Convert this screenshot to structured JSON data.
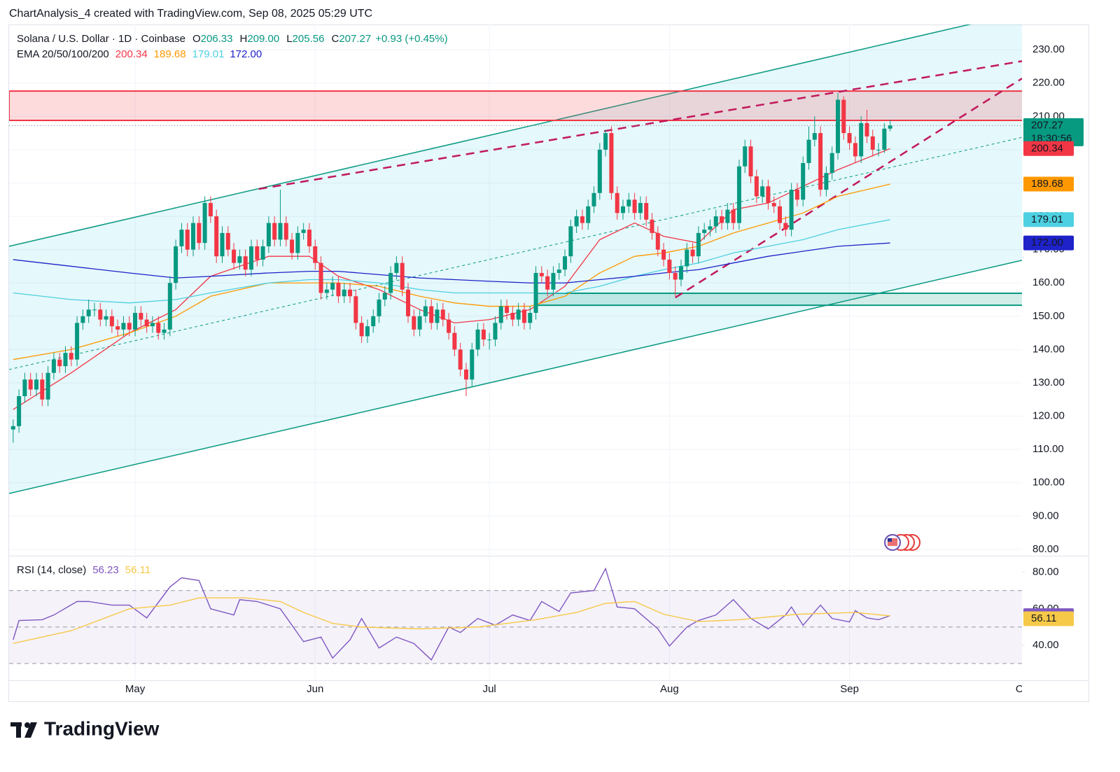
{
  "attribution": "ChartAnalysis_4 created with TradingView.com, Sep 08, 2025 05:29 UTC",
  "footer": {
    "brand": "TradingView"
  },
  "chart_data": [
    {
      "type": "candlestick",
      "title": "Solana / U.S. Dollar · 1D · Coinbase",
      "ohlc_legend": [
        {
          "label": "O",
          "value": "206.33"
        },
        {
          "label": "H",
          "value": "209.00"
        },
        {
          "label": "L",
          "value": "205.56"
        },
        {
          "label": "C",
          "value": "207.27"
        }
      ],
      "change": "+0.93 (+0.45%)",
      "countdown": "18:30:56",
      "up_color": "#089981",
      "down_color": "#f23645",
      "xlim": [
        -0.7,
        173.7
      ],
      "xticks": [
        {
          "value": 21,
          "label": "May"
        },
        {
          "value": 52,
          "label": "Jun"
        },
        {
          "value": 82,
          "label": "Jul"
        },
        {
          "value": 113,
          "label": "Aug"
        },
        {
          "value": 144,
          "label": "Sep"
        },
        {
          "value": 174,
          "label": "Oct"
        }
      ],
      "ylim": [
        78.3,
        237.6
      ],
      "yticks": [
        {
          "value": 80,
          "label": "80.00"
        },
        {
          "value": 90,
          "label": "90.00"
        },
        {
          "value": 100,
          "label": "100.00"
        },
        {
          "value": 110,
          "label": "110.00"
        },
        {
          "value": 120,
          "label": "120.00"
        },
        {
          "value": 130,
          "label": "130.00"
        },
        {
          "value": 140,
          "label": "140.00"
        },
        {
          "value": 150,
          "label": "150.00"
        },
        {
          "value": 160,
          "label": "160.00"
        },
        {
          "value": 170,
          "label": "170.00"
        },
        {
          "value": 180,
          "label": "180.00"
        },
        {
          "value": 190,
          "label": "190.00"
        },
        {
          "value": 200,
          "label": "200.00"
        },
        {
          "value": 210,
          "label": "210.00"
        },
        {
          "value": 220,
          "label": "220.00"
        },
        {
          "value": 230,
          "label": "230.00"
        }
      ],
      "grid": true,
      "open": [
        116,
        117,
        126,
        131,
        128,
        131,
        125,
        133,
        137,
        135,
        139,
        137,
        148,
        150,
        152,
        152,
        149,
        150,
        147,
        146,
        148,
        146,
        151,
        149,
        147,
        148,
        145,
        146,
        160,
        171,
        176,
        170,
        178,
        172,
        184,
        180,
        168,
        175,
        170,
        166,
        168,
        164,
        171,
        167,
        171,
        178,
        173,
        178,
        173,
        169,
        175,
        176,
        171,
        166,
        157,
        158,
        160,
        156,
        158,
        156,
        148,
        144,
        147,
        150,
        155,
        157,
        163,
        166,
        158,
        150,
        146,
        150,
        153,
        148,
        152,
        149,
        145,
        140,
        134,
        131,
        140,
        146,
        143,
        143,
        148,
        153,
        151,
        149,
        152,
        148,
        151,
        163,
        162,
        158,
        163,
        164,
        168,
        177,
        180,
        178,
        183,
        187,
        200,
        205,
        187,
        181,
        183,
        185,
        181,
        184,
        179,
        175,
        170,
        167,
        163,
        161,
        165,
        170,
        168,
        175,
        176,
        177,
        180,
        178,
        182,
        178,
        195,
        201,
        192,
        186,
        189,
        184,
        183,
        178,
        176,
        188,
        185,
        196,
        203,
        205,
        188,
        193,
        199,
        215,
        205,
        202,
        198,
        208,
        204,
        200,
        200,
        206.33
      ],
      "high": [
        119,
        128,
        133,
        133,
        133,
        133,
        135,
        139,
        139,
        141,
        141,
        150,
        152,
        155,
        154,
        154,
        152,
        152,
        149,
        150,
        150,
        153,
        153,
        151,
        150,
        150,
        148,
        162,
        173,
        178,
        178,
        180,
        180,
        186,
        186,
        182,
        177,
        177,
        172,
        170,
        170,
        173,
        173,
        173,
        180,
        180,
        188,
        180,
        175,
        177,
        178,
        178,
        173,
        168,
        160,
        162,
        162,
        160,
        160,
        158,
        150,
        149,
        152,
        157,
        159,
        165,
        168,
        168,
        160,
        152,
        152,
        155,
        155,
        154,
        154,
        151,
        147,
        142,
        136,
        142,
        148,
        148,
        145,
        150,
        155,
        155,
        153,
        154,
        154,
        153,
        165,
        165,
        164,
        165,
        166,
        170,
        179,
        182,
        182,
        185,
        189,
        202,
        206,
        207,
        189,
        185,
        187,
        187,
        186,
        186,
        181,
        177,
        172,
        169,
        165,
        167,
        172,
        172,
        177,
        178,
        179,
        182,
        182,
        184,
        184,
        197,
        203,
        203,
        194,
        191,
        191,
        186,
        185,
        180,
        190,
        190,
        198,
        207,
        210,
        207,
        195,
        201,
        217,
        216,
        207,
        204,
        210,
        212,
        206,
        202,
        208,
        209
      ],
      "low": [
        112,
        115,
        124,
        126,
        126,
        123,
        123,
        131,
        133,
        133,
        135,
        135,
        146,
        148,
        150,
        147,
        147,
        145,
        144,
        144,
        144,
        144,
        147,
        145,
        145,
        143,
        143,
        144,
        158,
        169,
        168,
        168,
        170,
        170,
        178,
        166,
        166,
        168,
        164,
        164,
        162,
        162,
        165,
        165,
        169,
        171,
        171,
        171,
        167,
        167,
        173,
        169,
        164,
        155,
        155,
        156,
        154,
        154,
        154,
        146,
        142,
        142,
        145,
        148,
        153,
        155,
        161,
        156,
        148,
        144,
        144,
        148,
        146,
        146,
        147,
        143,
        138,
        132,
        126,
        129,
        138,
        141,
        140,
        141,
        146,
        149,
        147,
        147,
        146,
        146,
        149,
        160,
        156,
        156,
        161,
        162,
        166,
        175,
        176,
        176,
        181,
        185,
        198,
        185,
        179,
        179,
        181,
        179,
        179,
        177,
        173,
        168,
        165,
        161,
        156,
        159,
        163,
        166,
        166,
        173,
        174,
        175,
        176,
        176,
        176,
        176,
        193,
        190,
        184,
        184,
        182,
        181,
        176,
        174,
        174,
        183,
        183,
        194,
        201,
        186,
        186,
        191,
        197,
        203,
        200,
        196,
        196,
        202,
        198,
        198,
        199,
        205.56
      ],
      "close": [
        117,
        126,
        131,
        128,
        131,
        125,
        133,
        137,
        135,
        139,
        137,
        148,
        150,
        152,
        152,
        149,
        150,
        147,
        146,
        148,
        146,
        151,
        149,
        147,
        148,
        145,
        146,
        160,
        171,
        176,
        170,
        178,
        172,
        184,
        180,
        168,
        175,
        170,
        166,
        168,
        164,
        171,
        167,
        171,
        178,
        173,
        178,
        173,
        169,
        175,
        176,
        171,
        166,
        157,
        158,
        160,
        156,
        158,
        156,
        148,
        144,
        147,
        150,
        155,
        157,
        163,
        166,
        158,
        150,
        146,
        150,
        153,
        148,
        152,
        149,
        145,
        140,
        134,
        131,
        140,
        146,
        143,
        143,
        148,
        153,
        151,
        149,
        152,
        148,
        151,
        163,
        162,
        158,
        163,
        164,
        168,
        177,
        180,
        178,
        183,
        187,
        200,
        205,
        187,
        181,
        183,
        185,
        181,
        184,
        179,
        175,
        170,
        167,
        163,
        161,
        165,
        170,
        168,
        175,
        176,
        177,
        180,
        178,
        182,
        178,
        195,
        201,
        192,
        186,
        189,
        184,
        183,
        178,
        176,
        188,
        185,
        196,
        203,
        205,
        188,
        193,
        199,
        215,
        205,
        202,
        198,
        208,
        204,
        200,
        200,
        206.33,
        207.27
      ],
      "indicator": "EMA 20/50/100/200",
      "series": [
        {
          "color": "#f23645",
          "badge_text": "#ffffff",
          "x": [
            0,
            10,
            20,
            28,
            34,
            44,
            51,
            56,
            63,
            70,
            76,
            82,
            89,
            95,
            101,
            107,
            112,
            118,
            124,
            130,
            136,
            142,
            151
          ],
          "values": [
            122,
            133,
            145,
            152,
            162,
            168,
            168,
            162,
            158,
            152,
            148,
            149,
            152,
            159,
            173,
            178,
            174,
            172,
            182,
            184,
            189,
            194,
            200.34
          ]
        },
        {
          "color": "#ff9800",
          "badge_text": "#ffffff",
          "x": [
            0,
            10,
            20,
            28,
            34,
            44,
            51,
            56,
            63,
            70,
            76,
            82,
            89,
            95,
            101,
            107,
            112,
            118,
            124,
            130,
            136,
            142,
            151
          ],
          "values": [
            137,
            140,
            145,
            150,
            156,
            160,
            160,
            160,
            159,
            156,
            154,
            153,
            153,
            156,
            163,
            168,
            169,
            171,
            175,
            178,
            181,
            186,
            189.68
          ]
        },
        {
          "color": "#4dd0e1",
          "badge_text": "#131722",
          "x": [
            0,
            10,
            20,
            28,
            34,
            44,
            51,
            56,
            63,
            70,
            76,
            82,
            89,
            95,
            101,
            107,
            112,
            118,
            124,
            130,
            136,
            142,
            151
          ],
          "values": [
            157,
            155,
            154,
            155,
            157,
            160,
            161,
            161,
            160,
            158,
            157,
            157,
            157,
            157,
            159,
            162,
            164,
            166,
            169,
            171,
            173,
            176,
            179.01
          ]
        },
        {
          "color": "#1e22c8",
          "badge_text": "#ffffff",
          "x": [
            0,
            10,
            20,
            28,
            34,
            44,
            51,
            56,
            63,
            70,
            76,
            82,
            89,
            95,
            101,
            107,
            112,
            118,
            124,
            130,
            136,
            142,
            151
          ],
          "values": [
            167,
            165,
            163,
            161.5,
            162,
            163,
            163.5,
            163.5,
            162.5,
            161.5,
            161,
            160.5,
            160,
            160,
            161,
            162,
            163,
            164,
            166,
            168,
            169.5,
            171,
            172
          ],
          "value_labels": [
            null,
            null,
            null,
            null,
            null,
            null,
            null,
            null,
            null,
            null,
            null,
            null,
            null,
            null,
            null,
            null,
            null,
            null,
            null,
            null,
            null,
            null,
            "172.00"
          ]
        }
      ],
      "channel": {
        "color": "#089981",
        "upper": [
          [
            -0.7,
            171
          ],
          [
            164.6,
            237.6
          ]
        ],
        "lower": [
          [
            -0.7,
            96.8
          ],
          [
            173.7,
            166.8
          ]
        ],
        "median": [
          [
            -0.7,
            134
          ],
          [
            173.7,
            203.7
          ]
        ]
      },
      "trendlines": [
        {
          "color": "#c2185b",
          "points": [
            [
              42.3,
              188.2
            ],
            [
              173.7,
              226.6
            ]
          ]
        },
        {
          "color": "#c2185b",
          "points": [
            [
              114,
              155.6
            ],
            [
              173.7,
              221.4
            ]
          ]
        }
      ],
      "zones": [
        {
          "color": "#f23645",
          "from": -0.7,
          "range": [
            208.8,
            217.6
          ]
        },
        {
          "color": "#089981",
          "from": 90,
          "range": [
            153.3,
            156.9
          ]
        }
      ]
    },
    {
      "type": "line",
      "title": "RSI (14, close)",
      "xlim": [
        -0.7,
        173.7
      ],
      "ylim": [
        20.8,
        88.7
      ],
      "yticks": [
        {
          "value": 40,
          "label": "40.00"
        },
        {
          "value": 60,
          "label": "60.00"
        },
        {
          "value": 80,
          "label": "80.00"
        }
      ],
      "levels": [
        30,
        50,
        70
      ],
      "series": [
        {
          "color": "#7e57c2",
          "badge_text": "#ffffff",
          "x": [
            0,
            1,
            5,
            7,
            11,
            13,
            17,
            20,
            23,
            27,
            29,
            32,
            34,
            38,
            39,
            42,
            46,
            50,
            53,
            55,
            58,
            60,
            63,
            66,
            69,
            72,
            75,
            77,
            80,
            83,
            86,
            89,
            91,
            94,
            96,
            100,
            102,
            104,
            107,
            111,
            113,
            116,
            118,
            121,
            124,
            127,
            130,
            133,
            134,
            136,
            139,
            141,
            144,
            145,
            147,
            149,
            151
          ],
          "values": [
            43,
            53.6,
            54,
            56.6,
            64,
            64,
            62,
            62,
            55,
            72,
            77,
            75.5,
            60,
            56.6,
            65,
            64,
            60,
            42,
            44.5,
            33,
            43,
            54.7,
            38.5,
            44.5,
            41,
            32,
            50,
            47,
            54.7,
            51,
            56.6,
            53.6,
            64,
            58.5,
            68.7,
            70,
            82,
            61,
            60,
            49,
            39.6,
            50,
            53.6,
            56.6,
            65,
            54.7,
            49,
            56.6,
            61,
            51,
            62,
            54.7,
            52.8,
            59,
            55,
            54,
            56.23
          ]
        },
        {
          "color": "#f7c948",
          "badge_text": "#131722",
          "x": [
            0,
            10,
            20,
            27,
            32,
            40,
            46,
            50,
            55,
            60,
            70,
            80,
            90,
            97,
            102,
            107,
            112,
            118,
            125,
            135,
            145,
            151
          ],
          "values": [
            41,
            48,
            60,
            62,
            66,
            66,
            64,
            58,
            52,
            50,
            49,
            50,
            54,
            58,
            63,
            64,
            57,
            53,
            54,
            57,
            58,
            56.11
          ]
        }
      ]
    }
  ]
}
